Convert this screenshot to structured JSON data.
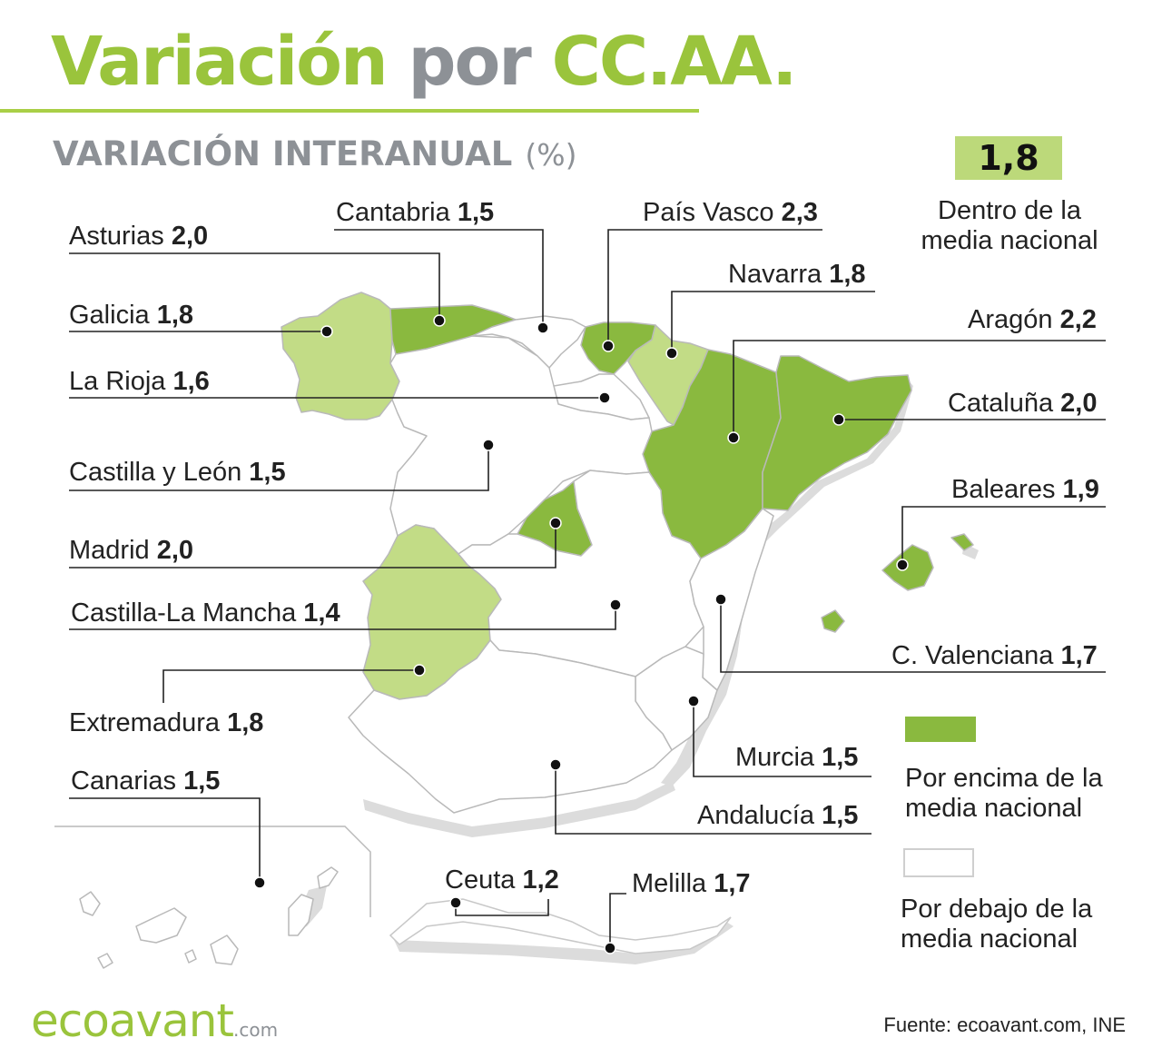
{
  "title": {
    "part1": "Variación",
    "part2": "por",
    "part3": "CC.AA."
  },
  "subtitle": {
    "text": "VARIACIÓN INTERANUAL",
    "unit": "(%)"
  },
  "national_average": {
    "value": "1,8",
    "caption": "Dentro de la media nacional"
  },
  "colors": {
    "above": "#8ab93f",
    "within": "#c2dc86",
    "below": "#ffffff",
    "border": "#b9b9b9",
    "shadow": "#dcdcdc",
    "accent": "#9ac43c"
  },
  "regions": [
    {
      "id": "asturias",
      "name": "Asturias",
      "value": "2,0",
      "category": "above"
    },
    {
      "id": "cantabria",
      "name": "Cantabria",
      "value": "1,5",
      "category": "below"
    },
    {
      "id": "pais-vasco",
      "name": "País Vasco",
      "value": "2,3",
      "category": "above"
    },
    {
      "id": "navarra",
      "name": "Navarra",
      "value": "1,8",
      "category": "within"
    },
    {
      "id": "galicia",
      "name": "Galicia",
      "value": "1,8",
      "category": "within"
    },
    {
      "id": "aragon",
      "name": "Aragón",
      "value": "2,2",
      "category": "above"
    },
    {
      "id": "la-rioja",
      "name": "La Rioja",
      "value": "1,6",
      "category": "below"
    },
    {
      "id": "cataluna",
      "name": "Cataluña",
      "value": "2,0",
      "category": "above"
    },
    {
      "id": "castilla-leon",
      "name": "Castilla y León",
      "value": "1,5",
      "category": "below"
    },
    {
      "id": "baleares",
      "name": "Baleares",
      "value": "1,9",
      "category": "above"
    },
    {
      "id": "madrid",
      "name": "Madrid",
      "value": "2,0",
      "category": "above"
    },
    {
      "id": "castilla-la-mancha",
      "name": "Castilla-La Mancha",
      "value": "1,4",
      "category": "below"
    },
    {
      "id": "c-valenciana",
      "name": "C. Valenciana",
      "value": "1,7",
      "category": "below"
    },
    {
      "id": "extremadura",
      "name": "Extremadura",
      "value": "1,8",
      "category": "within"
    },
    {
      "id": "murcia",
      "name": "Murcia",
      "value": "1,5",
      "category": "below"
    },
    {
      "id": "canarias",
      "name": "Canarias",
      "value": "1,5",
      "category": "below"
    },
    {
      "id": "andalucia",
      "name": "Andalucía",
      "value": "1,5",
      "category": "below"
    },
    {
      "id": "ceuta",
      "name": "Ceuta",
      "value": "1,2",
      "category": "below"
    },
    {
      "id": "melilla",
      "name": "Melilla",
      "value": "1,7",
      "category": "below"
    }
  ],
  "legend": {
    "above": "Por encima de la media nacional",
    "below": "Por debajo de la media nacional"
  },
  "source": "Fuente: ecoavant.com, INE",
  "logo": {
    "name": "ecoavant",
    "domain": ".com"
  }
}
